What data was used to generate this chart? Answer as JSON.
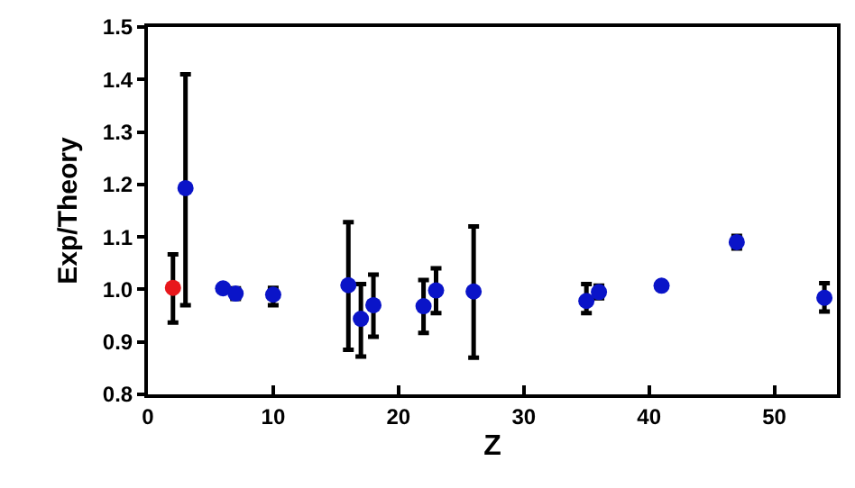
{
  "chart_data": {
    "type": "scatter",
    "xlabel": "Z",
    "ylabel": "Exp/Theory",
    "xlim": [
      0,
      55
    ],
    "xticks": [
      0,
      10,
      20,
      30,
      40,
      50
    ],
    "ylim": [
      0.8,
      1.5
    ],
    "yticks": [
      {
        "value": 0.8,
        "label": "0.8"
      },
      {
        "value": 0.9,
        "label": "0.9"
      },
      {
        "value": 1.0,
        "label": "1.0"
      },
      {
        "value": 1.1,
        "label": "1.1"
      },
      {
        "value": 1.2,
        "label": "1.2"
      },
      {
        "value": 1.3,
        "label": "1.3"
      },
      {
        "value": 1.4,
        "label": "1.4"
      },
      {
        "value": 1.5,
        "label": "1.5"
      }
    ],
    "grid": false,
    "marker": "circle",
    "series": [
      {
        "color": "#e8171c",
        "x": [
          2
        ],
        "values": [
          1.003
        ],
        "errors": [
          [
            0.937,
            1.067
          ]
        ]
      },
      {
        "color": "#0a14c8",
        "x": [
          3,
          6,
          7,
          10,
          16,
          17,
          18,
          22,
          23,
          26,
          35,
          36,
          41,
          47,
          54
        ],
        "values": [
          1.193,
          1.002,
          0.992,
          0.99,
          1.008,
          0.944,
          0.97,
          0.968,
          0.998,
          0.996,
          0.978,
          0.995,
          1.007,
          1.09,
          0.984
        ],
        "errors": [
          [
            0.97,
            1.41
          ],
          null,
          [
            0.982,
            1.002
          ],
          [
            0.97,
            1.003
          ],
          [
            0.885,
            1.128
          ],
          [
            0.872,
            1.01
          ],
          [
            0.91,
            1.028
          ],
          [
            0.917,
            1.018
          ],
          [
            0.955,
            1.04
          ],
          [
            0.87,
            1.12
          ],
          [
            0.955,
            1.01
          ],
          [
            0.983,
            1.007
          ],
          null,
          [
            1.078,
            1.102
          ],
          [
            0.958,
            1.012
          ]
        ]
      }
    ]
  }
}
